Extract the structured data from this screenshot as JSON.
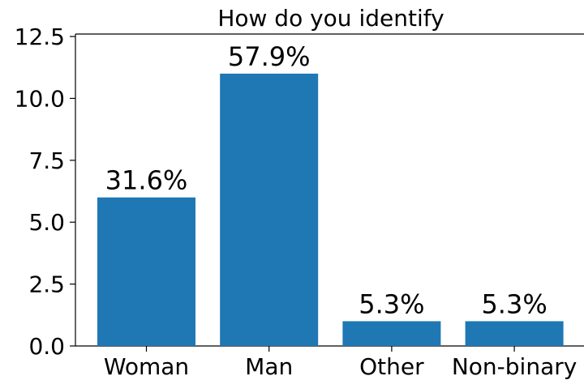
{
  "chart_data": {
    "type": "bar",
    "title": "How do you identify",
    "xlabel": "",
    "ylabel": "",
    "categories": [
      "Woman",
      "Man",
      "Other",
      "Non-binary"
    ],
    "values": [
      6,
      11,
      1,
      1
    ],
    "bar_labels": [
      "31.6%",
      "57.9%",
      "5.3%",
      "5.3%"
    ],
    "ylim": [
      0,
      12.6
    ],
    "yticks": [
      0,
      2.5,
      5,
      7.5,
      10,
      12.5
    ],
    "ytick_labels": [
      "0.0",
      "2.5",
      "5.0",
      "7.5",
      "10.0",
      "12.5"
    ],
    "grid": false,
    "legend": "none",
    "bar_color": "#1f77b4"
  }
}
